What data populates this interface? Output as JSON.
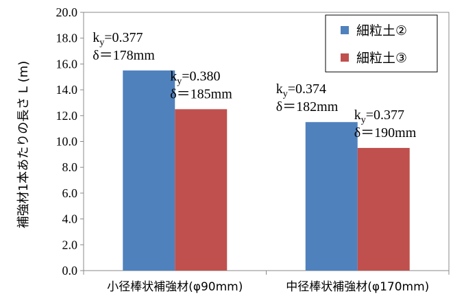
{
  "chart_data": {
    "type": "bar",
    "ylabel": "補強材1本あたりの長さ L (m)",
    "ylim": [
      0,
      20
    ],
    "yticks": [
      "0.0",
      "2.0",
      "4.0",
      "6.0",
      "8.0",
      "10.0",
      "12.0",
      "14.0",
      "16.0",
      "18.0",
      "20.0"
    ],
    "grid": false,
    "legend_position": "top-right",
    "categories": [
      "小径棒状補強材(φ90mm)",
      "中径棒状補強材(φ170mm)"
    ],
    "series": [
      {
        "name": "細粒土②",
        "color": "#4f81bd",
        "values": [
          15.5,
          11.5
        ],
        "annotations": [
          {
            "k": "0.377",
            "d": "δ＝178mm"
          },
          {
            "k": "0.374",
            "d": "δ＝182mm"
          }
        ]
      },
      {
        "name": "細粒土③",
        "color": "#c0504d",
        "values": [
          12.5,
          9.5
        ],
        "annotations": [
          {
            "k": "0.380",
            "d": "δ＝185mm"
          },
          {
            "k": "0.377",
            "d": "δ＝190mm"
          }
        ]
      }
    ],
    "annotation_k_prefix": "k",
    "annotation_k_sub": "y",
    "annotation_k_eq": "="
  }
}
